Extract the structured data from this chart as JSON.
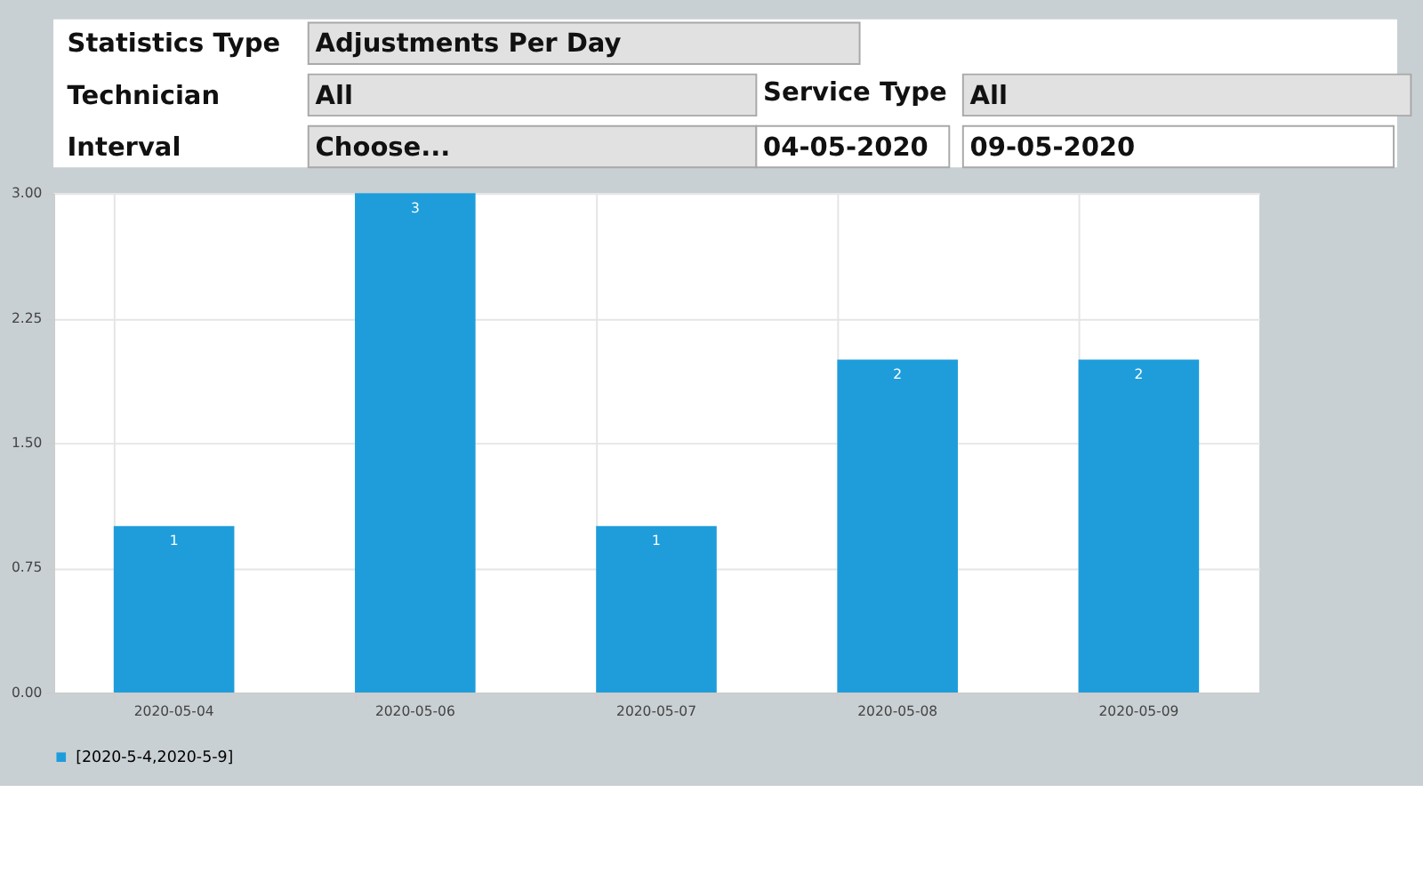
{
  "chart_data": {
    "type": "bar",
    "categories": [
      "2020-05-04",
      "2020-05-06",
      "2020-05-07",
      "2020-05-08",
      "2020-05-09"
    ],
    "series": [
      {
        "name": "[2020-5-4,2020-5-9]",
        "color": "#1f9ddb",
        "values": [
          1,
          3,
          1,
          2,
          2
        ]
      }
    ],
    "ylim": [
      0,
      3
    ],
    "yticks": [
      {
        "value": 0,
        "label": "0.00"
      },
      {
        "value": 0.75,
        "label": "0.75"
      },
      {
        "value": 1.5,
        "label": "1.50"
      },
      {
        "value": 2.25,
        "label": "2.25"
      },
      {
        "value": 3,
        "label": "3.00"
      }
    ],
    "grid": true,
    "legend": "bottom",
    "data_labels": true,
    "annotations": [
      "Statistics Type",
      "Adjustments Per Day",
      "Technician",
      "All",
      "Service Type",
      "All",
      "Interval",
      "Choose...",
      "04-05-2020",
      "09-05-2020"
    ]
  }
}
